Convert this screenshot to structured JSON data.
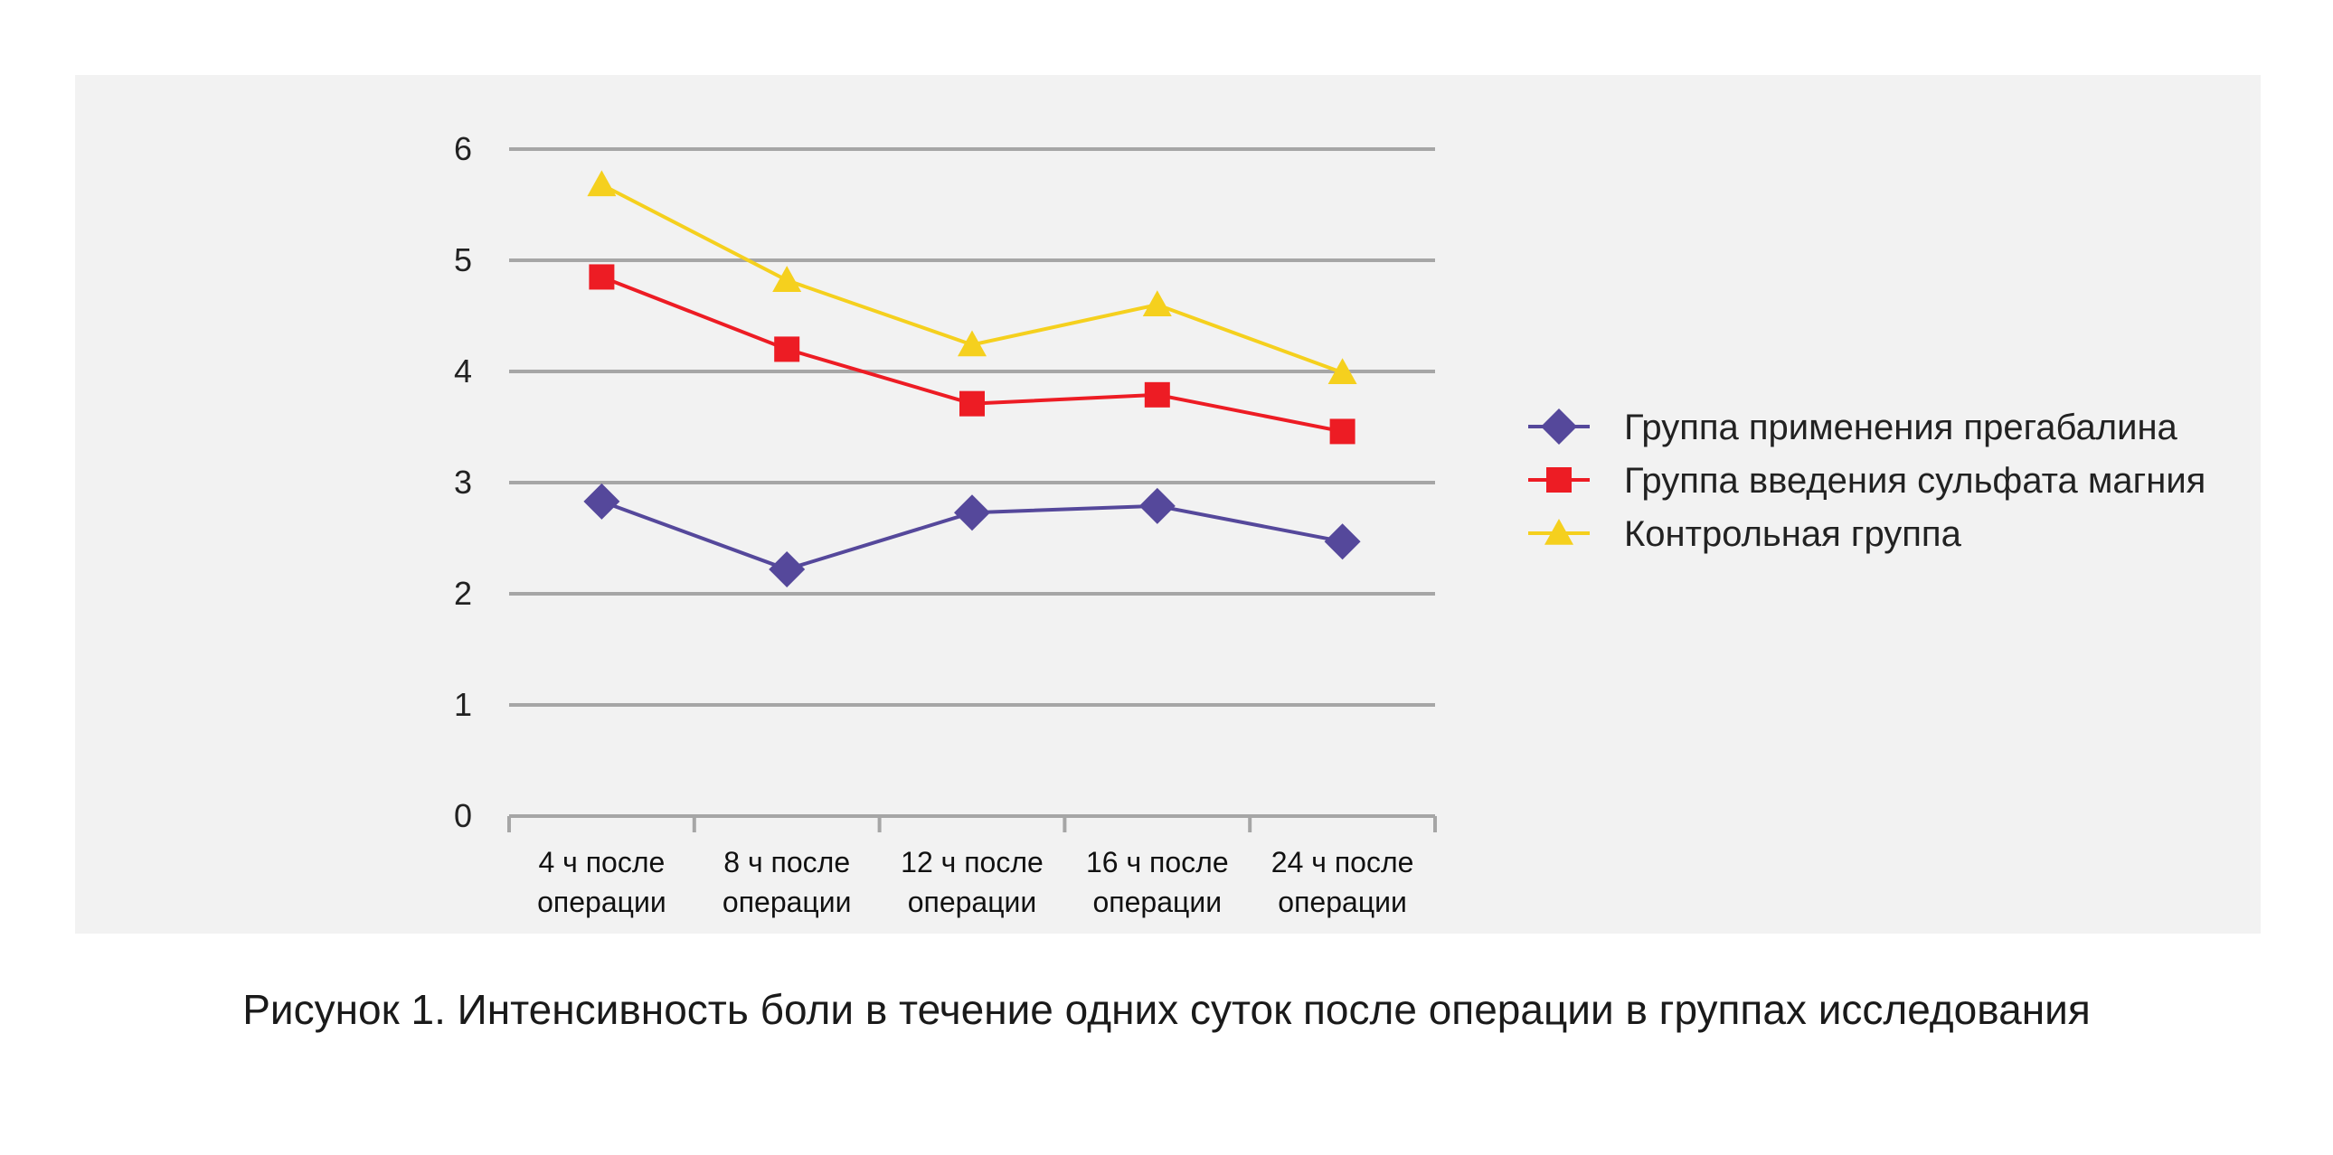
{
  "caption": "Рисунок 1. Интенсивность боли в течение одних суток после операции в группах исследования",
  "colors": {
    "panel_background": "#f2f2f2",
    "gridline": "#a6a6a6",
    "pregabalin": "#55489b",
    "magnesium": "#ed1c24",
    "control": "#f5d01e"
  },
  "chart_data": {
    "type": "line",
    "categories": [
      [
        "4 ч после",
        "операции"
      ],
      [
        "8 ч после",
        "операции"
      ],
      [
        "12 ч после",
        "операции"
      ],
      [
        "16 ч после",
        "операции"
      ],
      [
        "24 ч после",
        "операции"
      ]
    ],
    "ylim": [
      0,
      6
    ],
    "yticks": [
      "0",
      "1",
      "2",
      "3",
      "4",
      "5",
      "6"
    ],
    "grid": true,
    "legend_position": "right",
    "series": [
      {
        "name": "Группа применения прегабалина",
        "marker": "diamond",
        "color": "#55489b",
        "values": [
          2.83,
          2.22,
          2.73,
          2.79,
          2.47
        ]
      },
      {
        "name": "Группа введения сульфата магния",
        "marker": "square",
        "color": "#ed1c24",
        "values": [
          4.85,
          4.2,
          3.71,
          3.79,
          3.46
        ]
      },
      {
        "name": "Контрольная группа",
        "marker": "triangle",
        "color": "#f5d01e",
        "values": [
          5.68,
          4.82,
          4.24,
          4.6,
          3.99
        ]
      }
    ]
  }
}
